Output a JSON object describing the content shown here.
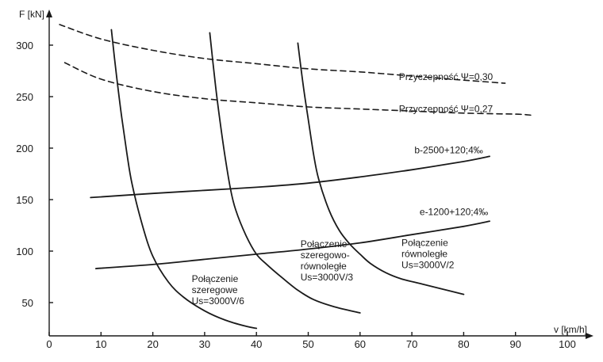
{
  "chart_data": {
    "type": "line",
    "xlabel": "v [km/h]",
    "ylabel": "F [kN]",
    "xlim": [
      0,
      110
    ],
    "ylim": [
      20,
      340
    ],
    "x_ticks": [
      0,
      10,
      20,
      30,
      40,
      50,
      60,
      70,
      80,
      90,
      100
    ],
    "y_ticks": [
      50,
      100,
      150,
      200,
      250,
      300
    ],
    "grid": false,
    "series": [
      {
        "name": "Przyczepność Ψ=0,30",
        "style": "dashed",
        "points": [
          [
            2,
            320
          ],
          [
            10,
            306
          ],
          [
            20,
            295
          ],
          [
            30,
            287
          ],
          [
            40,
            282
          ],
          [
            50,
            277
          ],
          [
            60,
            274
          ],
          [
            70,
            270
          ],
          [
            80,
            266
          ],
          [
            88,
            263
          ]
        ]
      },
      {
        "name": "Przyczepność Ψ=0,27",
        "style": "dashed",
        "points": [
          [
            3,
            283
          ],
          [
            10,
            267
          ],
          [
            20,
            255
          ],
          [
            30,
            248
          ],
          [
            40,
            244
          ],
          [
            50,
            240
          ],
          [
            60,
            238
          ],
          [
            70,
            236
          ],
          [
            80,
            234
          ],
          [
            90,
            233
          ],
          [
            93,
            232
          ]
        ]
      },
      {
        "name": "b-2500+120;4‰",
        "style": "solid",
        "points": [
          [
            8,
            152
          ],
          [
            20,
            156
          ],
          [
            30,
            159
          ],
          [
            40,
            162
          ],
          [
            50,
            166
          ],
          [
            60,
            172
          ],
          [
            70,
            179
          ],
          [
            80,
            187
          ],
          [
            85,
            192
          ]
        ]
      },
      {
        "name": "e-1200+120;4‰",
        "style": "solid",
        "points": [
          [
            9,
            83
          ],
          [
            20,
            87
          ],
          [
            30,
            92
          ],
          [
            40,
            97
          ],
          [
            50,
            102
          ],
          [
            60,
            108
          ],
          [
            70,
            116
          ],
          [
            80,
            124
          ],
          [
            85,
            129
          ]
        ]
      },
      {
        "name": "Połączenie szeregowe Us=3000V/6",
        "style": "solid",
        "points": [
          [
            12,
            315
          ],
          [
            13,
            270
          ],
          [
            14,
            230
          ],
          [
            15,
            195
          ],
          [
            16,
            165
          ],
          [
            18,
            125
          ],
          [
            20,
            95
          ],
          [
            23,
            70
          ],
          [
            26,
            55
          ],
          [
            30,
            42
          ],
          [
            34,
            33
          ],
          [
            38,
            27
          ],
          [
            40,
            25
          ]
        ]
      },
      {
        "name": "Połączenie szeregowo-równoległe Us=3000V/3",
        "style": "solid",
        "points": [
          [
            31,
            312
          ],
          [
            32,
            265
          ],
          [
            33,
            225
          ],
          [
            34,
            190
          ],
          [
            35,
            160
          ],
          [
            36,
            140
          ],
          [
            38,
            115
          ],
          [
            40,
            97
          ],
          [
            42,
            87
          ],
          [
            45,
            74
          ],
          [
            48,
            62
          ],
          [
            51,
            53
          ],
          [
            55,
            46
          ],
          [
            60,
            40
          ]
        ]
      },
      {
        "name": "Połączenie równoległe Us=3000V/2",
        "style": "solid",
        "points": [
          [
            48,
            302
          ],
          [
            49,
            262
          ],
          [
            50,
            228
          ],
          [
            51,
            195
          ],
          [
            52,
            170
          ],
          [
            54,
            140
          ],
          [
            56,
            120
          ],
          [
            58,
            107
          ],
          [
            60,
            97
          ],
          [
            62,
            88
          ],
          [
            65,
            79
          ],
          [
            68,
            73
          ],
          [
            72,
            68
          ],
          [
            76,
            63
          ],
          [
            80,
            58
          ]
        ]
      }
    ],
    "annotations": [
      {
        "lines": [
          "Przyczepność Ψ=0,30"
        ],
        "x": 67.5,
        "y": 266
      },
      {
        "lines": [
          "Przyczepność Ψ=0,27"
        ],
        "x": 67.5,
        "y": 235
      },
      {
        "lines": [
          "b-2500+120;4‰"
        ],
        "x": 70.5,
        "y": 195
      },
      {
        "lines": [
          "e-1200+120;4‰"
        ],
        "x": 71.5,
        "y": 135
      },
      {
        "lines": [
          "Połączenie",
          "szeregowe",
          "Us=3000V/6"
        ],
        "x": 27.5,
        "y": 70
      },
      {
        "lines": [
          "Połączenie",
          "szeregowo-",
          "równoległe",
          "Us=3000V/3"
        ],
        "x": 48.5,
        "y": 104
      },
      {
        "lines": [
          "Połączenie",
          "równoległe",
          "Us=3000V/2"
        ],
        "x": 68,
        "y": 105
      }
    ]
  }
}
